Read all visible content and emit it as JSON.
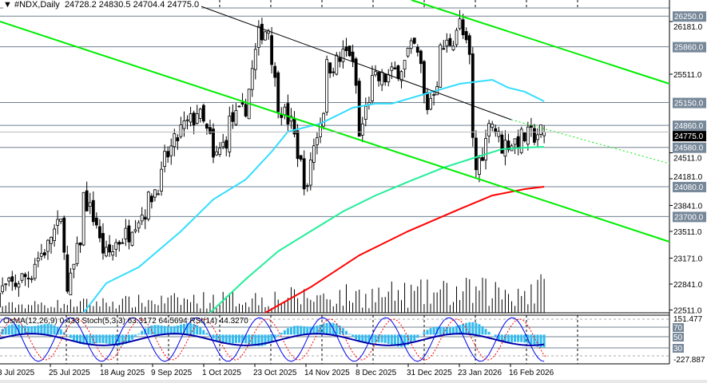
{
  "header": {
    "symbol_title": "#NDX,Daily",
    "ohlc": "24728.2 24830.5 24704.4 24775.0",
    "menu_icon": "triangle-down-icon"
  },
  "indicator_title": "OsMA(12,26,9) 0.433  Stoch(5,3,3) 63.3172 64.5694  RSI(14) 44.3270",
  "colors": {
    "background": "#ffffff",
    "candle": "#000000",
    "trend_line": "#00ee00",
    "ma_fast": "#33ddff",
    "ma_mid": "#22ee99",
    "ma_slow": "#ff0000",
    "level_line": "#708090",
    "level_label_bg": "#778899",
    "current_label_bg": "#000000",
    "osma": "#33bbee",
    "stoch_main": "#0000ee",
    "stoch_signal": "#ff0000",
    "rsi": "#0000aa"
  },
  "chart_data": {
    "type": "candlestick",
    "symbol": "#NDX",
    "timeframe": "Daily",
    "ylim": [
      22480,
      26330
    ],
    "price_ticks": [
      "26181.0",
      "25511.0",
      "24511.0",
      "24181.0",
      "23841.0",
      "23511.0",
      "23171.0",
      "22841.0",
      "22511.0"
    ],
    "levels": [
      "26250.0",
      "25860.0",
      "25150.0",
      "24860.0",
      "24580.0",
      "24080.0",
      "23700.0"
    ],
    "current_price": "24775.0",
    "time_labels": [
      "3 Jul 2025",
      "25 Jul 2025",
      "18 Aug 2025",
      "9 Sep 2025",
      "1 Oct 2025",
      "23 Oct 2025",
      "14 Nov 2025",
      "8 Dec 2025",
      "31 Dec 2025",
      "23 Jan 2026",
      "16 Feb 2026"
    ],
    "close_path": [
      [
        "2025-07-03",
        22700
      ],
      [
        "2025-07-17",
        22950
      ],
      [
        "2025-07-31",
        23600
      ],
      [
        "2025-08-04",
        22700
      ],
      [
        "2025-08-11",
        23950
      ],
      [
        "2025-08-20",
        23200
      ],
      [
        "2025-08-29",
        23500
      ],
      [
        "2025-09-08",
        23900
      ],
      [
        "2025-09-19",
        24700
      ],
      [
        "2025-09-29",
        25050
      ],
      [
        "2025-10-06",
        24400
      ],
      [
        "2025-10-13",
        24900
      ],
      [
        "2025-10-20",
        25100
      ],
      [
        "2025-10-24",
        26000
      ],
      [
        "2025-10-29",
        26100
      ],
      [
        "2025-10-31",
        25400
      ],
      [
        "2025-11-05",
        25000
      ],
      [
        "2025-11-10",
        24700
      ],
      [
        "2025-11-14",
        24000
      ],
      [
        "2025-11-18",
        24600
      ],
      [
        "2025-11-24",
        25600
      ],
      [
        "2025-12-03",
        25800
      ],
      [
        "2025-12-08",
        24700
      ],
      [
        "2025-12-12",
        25400
      ],
      [
        "2025-12-22",
        25500
      ],
      [
        "2025-12-31",
        25850
      ],
      [
        "2026-01-06",
        25100
      ],
      [
        "2026-01-12",
        25800
      ],
      [
        "2026-01-20",
        26150
      ],
      [
        "2026-01-23",
        25700
      ],
      [
        "2026-01-27",
        24300
      ],
      [
        "2026-02-02",
        25000
      ],
      [
        "2026-02-06",
        24600
      ],
      [
        "2026-02-24",
        24775
      ]
    ],
    "series": [
      {
        "type": "ma",
        "color": "ma_fast",
        "points": [
          [
            "2025-08-09",
            22476
          ],
          [
            "2025-08-20",
            22852
          ],
          [
            "2025-09-03",
            23055
          ],
          [
            "2025-09-21",
            23512
          ],
          [
            "2025-10-05",
            23918
          ],
          [
            "2025-10-19",
            24171
          ],
          [
            "2025-10-30",
            24526
          ],
          [
            "2025-11-06",
            24780
          ],
          [
            "2025-11-20",
            24882
          ],
          [
            "2025-12-04",
            25085
          ],
          [
            "2025-12-15",
            25136
          ],
          [
            "2025-12-22",
            25136
          ],
          [
            "2026-01-05",
            25257
          ],
          [
            "2026-01-20",
            25389
          ],
          [
            "2026-02-03",
            25440
          ],
          [
            "2026-02-10",
            25339
          ],
          [
            "2026-02-17",
            25288
          ],
          [
            "2026-02-25",
            25166
          ]
        ]
      },
      {
        "type": "ma",
        "color": "ma_mid",
        "points": [
          [
            "2025-10-03",
            22476
          ],
          [
            "2025-10-19",
            22903
          ],
          [
            "2025-11-03",
            23258
          ],
          [
            "2025-11-17",
            23512
          ],
          [
            "2025-12-01",
            23765
          ],
          [
            "2025-12-15",
            23968
          ],
          [
            "2025-12-29",
            24141
          ],
          [
            "2026-01-13",
            24323
          ],
          [
            "2026-01-27",
            24455
          ],
          [
            "2026-02-06",
            24557
          ],
          [
            "2026-02-17",
            24577
          ],
          [
            "2026-02-25",
            24587
          ]
        ]
      },
      {
        "type": "ma",
        "color": "ma_slow",
        "points": [
          [
            "2025-10-28",
            22476
          ],
          [
            "2025-11-17",
            22801
          ],
          [
            "2025-12-08",
            23207
          ],
          [
            "2025-12-29",
            23512
          ],
          [
            "2026-01-20",
            23796
          ],
          [
            "2026-02-03",
            23968
          ],
          [
            "2026-02-17",
            24049
          ],
          [
            "2026-02-25",
            24080
          ]
        ]
      }
    ],
    "indicator": {
      "ticks": [
        "151.477",
        "70",
        "50",
        "30",
        "-227.887"
      ],
      "dashed_levels": [
        "80",
        "20"
      ]
    }
  }
}
